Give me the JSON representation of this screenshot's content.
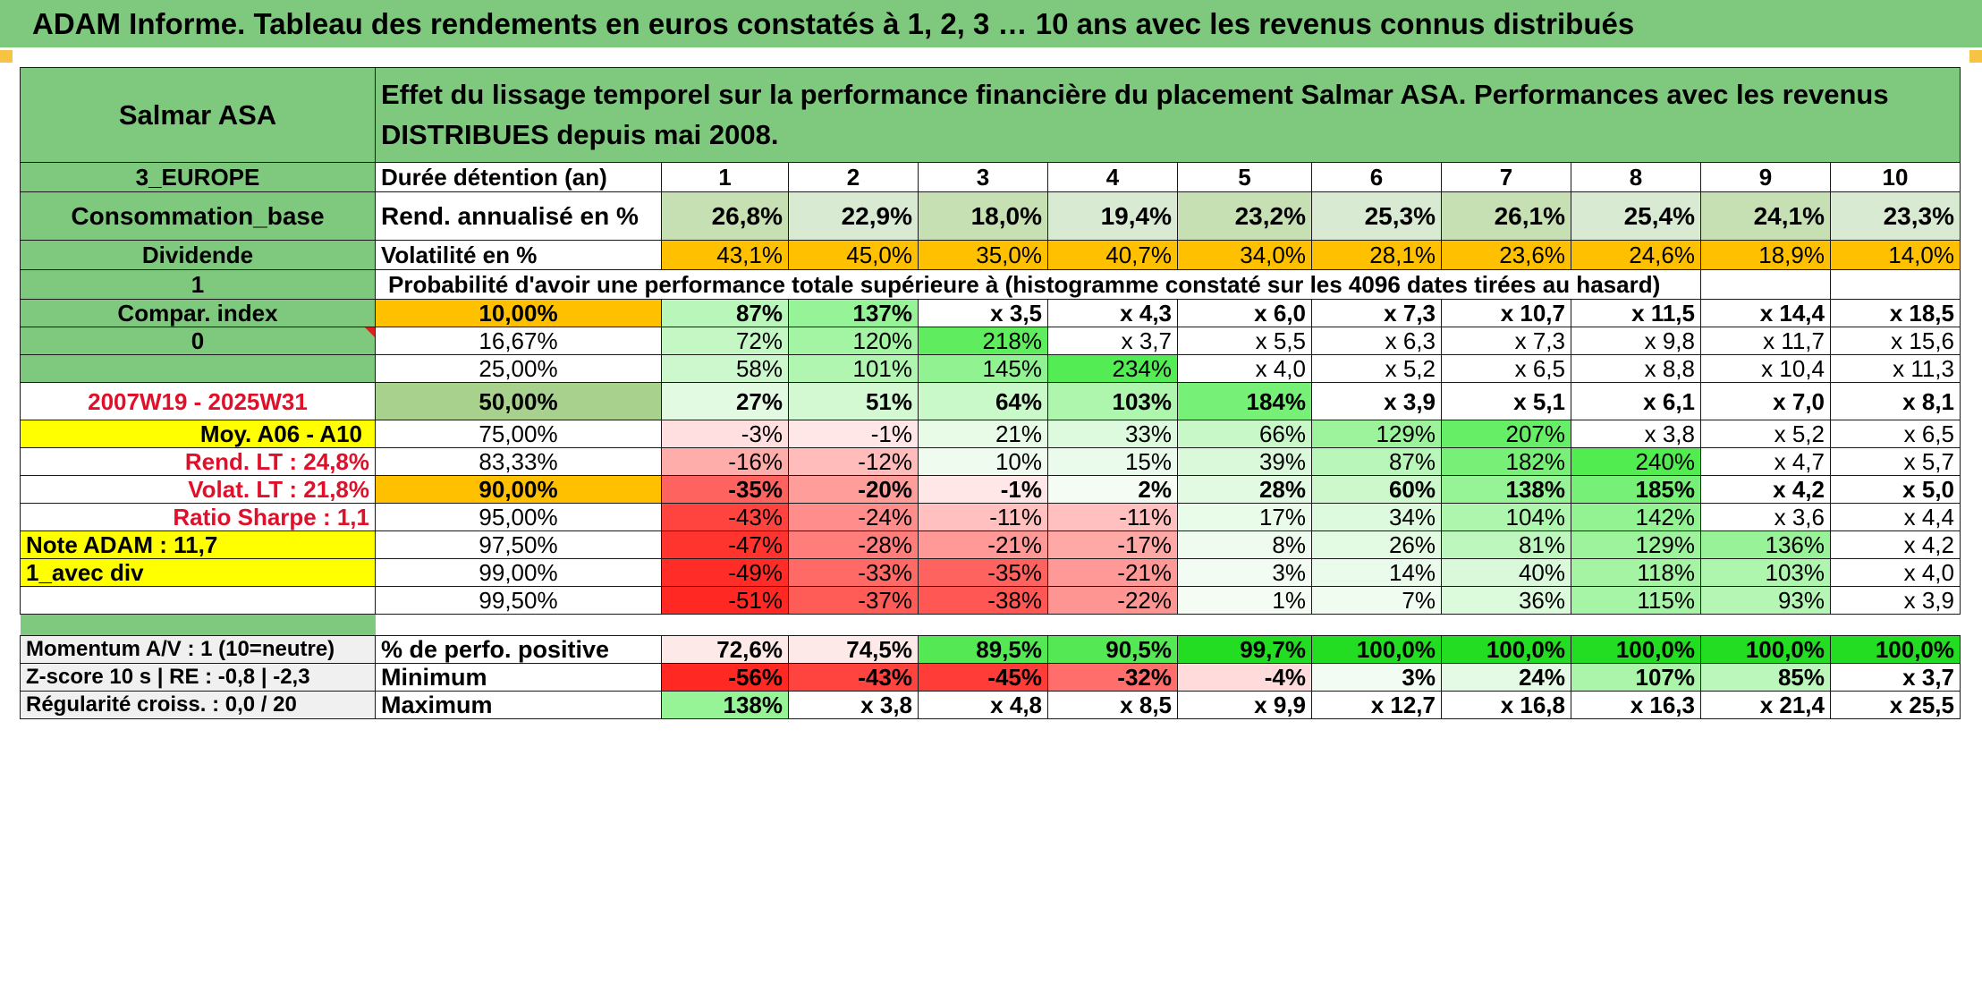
{
  "title": "ADAM Informe. Tableau des rendements en euros constatés à 1, 2, 3 … 10 ans avec les revenus connus distribués",
  "left": {
    "asset_name": "Salmar ASA",
    "region": "3_EUROPE",
    "sector": "Consommation_base",
    "dividend": "Dividende",
    "one": "1",
    "compar_index": "Compar. index",
    "zero": "0",
    "period": "2007W19 - 2025W31",
    "moy": "Moy. A06 - A10",
    "rend_lt": "Rend. LT :    24,8%",
    "volat_lt": "Volat. LT :    21,8%",
    "ratio_sharpe": "Ratio Sharpe :    1,1",
    "note_adam": "Note ADAM : 11,7",
    "avec_div": "1_avec div"
  },
  "header_text": "Effet du lissage temporel sur la performance financière du placement Salmar ASA. Performances avec les revenus DISTRIBUES depuis mai 2008.",
  "duration_label": "Durée détention (an)",
  "years": [
    "1",
    "2",
    "3",
    "4",
    "5",
    "6",
    "7",
    "8",
    "9",
    "10"
  ],
  "rend_label": "Rend. annualisé en %",
  "rend_values": [
    "26,8%",
    "22,9%",
    "18,0%",
    "19,4%",
    "23,2%",
    "25,3%",
    "26,1%",
    "25,4%",
    "24,1%",
    "23,3%"
  ],
  "vol_label": "Volatilité en %",
  "vol_values": [
    "43,1%",
    "45,0%",
    "35,0%",
    "40,7%",
    "34,0%",
    "28,1%",
    "23,6%",
    "24,6%",
    "18,9%",
    "14,0%"
  ],
  "prob_text": "Probabilité d'avoir une performance totale supérieure à (histogramme constaté sur les 4096 dates tirées au hasard)",
  "prob_rows": [
    {
      "pct": "10,00%",
      "values": [
        "87%",
        "137%",
        "x 3,5",
        "x 4,3",
        "x 6,0",
        "x 7,3",
        "x 10,7",
        "x 11,5",
        "x 14,4",
        "x 18,5"
      ]
    },
    {
      "pct": "16,67%",
      "values": [
        "72%",
        "120%",
        "218%",
        "x 3,7",
        "x 5,5",
        "x 6,3",
        "x 7,3",
        "x 9,8",
        "x 11,7",
        "x 15,6"
      ]
    },
    {
      "pct": "25,00%",
      "values": [
        "58%",
        "101%",
        "145%",
        "234%",
        "x 4,0",
        "x 5,2",
        "x 6,5",
        "x 8,8",
        "x 10,4",
        "x 11,3"
      ]
    },
    {
      "pct": "50,00%",
      "values": [
        "27%",
        "51%",
        "64%",
        "103%",
        "184%",
        "x 3,9",
        "x 5,1",
        "x 6,1",
        "x 7,0",
        "x 8,1"
      ]
    },
    {
      "pct": "75,00%",
      "values": [
        "-3%",
        "-1%",
        "21%",
        "33%",
        "66%",
        "129%",
        "207%",
        "x 3,8",
        "x 5,2",
        "x 6,5"
      ]
    },
    {
      "pct": "83,33%",
      "values": [
        "-16%",
        "-12%",
        "10%",
        "15%",
        "39%",
        "87%",
        "182%",
        "240%",
        "x 4,7",
        "x 5,7"
      ]
    },
    {
      "pct": "90,00%",
      "values": [
        "-35%",
        "-20%",
        "-1%",
        "2%",
        "28%",
        "60%",
        "138%",
        "185%",
        "x 4,2",
        "x 5,0"
      ]
    },
    {
      "pct": "95,00%",
      "values": [
        "-43%",
        "-24%",
        "-11%",
        "-11%",
        "17%",
        "34%",
        "104%",
        "142%",
        "x 3,6",
        "x 4,4"
      ]
    },
    {
      "pct": "97,50%",
      "values": [
        "-47%",
        "-28%",
        "-21%",
        "-17%",
        "8%",
        "26%",
        "81%",
        "129%",
        "136%",
        "x 4,2"
      ]
    },
    {
      "pct": "99,00%",
      "values": [
        "-49%",
        "-33%",
        "-35%",
        "-21%",
        "3%",
        "14%",
        "40%",
        "118%",
        "103%",
        "x 4,0"
      ]
    },
    {
      "pct": "99,50%",
      "values": [
        "-51%",
        "-37%",
        "-38%",
        "-22%",
        "1%",
        "7%",
        "36%",
        "115%",
        "93%",
        "x 3,9"
      ]
    }
  ],
  "footer": [
    {
      "left": "Momentum A/V : 1 (10=neutre)",
      "label": "% de perfo. positive",
      "values": [
        "72,6%",
        "74,5%",
        "89,5%",
        "90,5%",
        "99,7%",
        "100,0%",
        "100,0%",
        "100,0%",
        "100,0%",
        "100,0%"
      ]
    },
    {
      "left": "Z-score 10 s | RE : -0,8 | -2,3",
      "label": "Minimum",
      "values": [
        "-56%",
        "-43%",
        "-45%",
        "-32%",
        "-4%",
        "3%",
        "24%",
        "107%",
        "85%",
        "x 3,7"
      ]
    },
    {
      "left": "Régularité croiss. : 0,0 / 20",
      "label": "Maximum",
      "values": [
        "138%",
        "x 3,8",
        "x 4,8",
        "x 8,5",
        "x 9,9",
        "x 12,7",
        "x 16,8",
        "x 16,3",
        "x 21,4",
        "x 25,5"
      ]
    }
  ],
  "colors": {
    "header_green": "#7fc97f",
    "bright_green": "#22dd22",
    "yellow": "#ffff00",
    "orange": "#ffc000",
    "red_text": "#e0102a"
  }
}
